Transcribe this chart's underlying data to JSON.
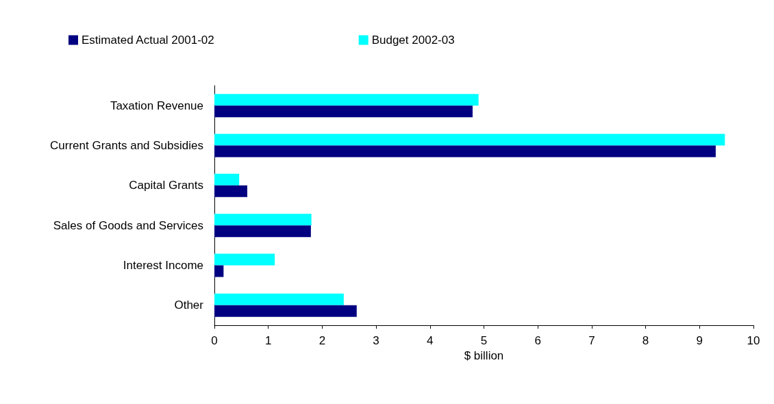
{
  "chart_data": {
    "type": "bar",
    "orientation": "horizontal",
    "xlabel": "$ billion",
    "categories": [
      "Taxation Revenue",
      "Current Grants and Subsidies",
      "Capital Grants",
      "Sales of Goods and Services",
      "Interest Income",
      "Other"
    ],
    "series": [
      {
        "name": "Estimated Actual 2001-02",
        "color": "#000080",
        "values": [
          4.79,
          9.3,
          0.61,
          1.79,
          0.17,
          2.64
        ]
      },
      {
        "name": "Budget 2002-03",
        "color": "#00ffff",
        "values": [
          4.9,
          9.47,
          0.46,
          1.8,
          1.12,
          2.4
        ]
      }
    ],
    "xlim": [
      0,
      10
    ],
    "xticks": [
      0,
      1,
      2,
      3,
      4,
      5,
      6,
      7,
      8,
      9,
      10
    ],
    "grid": false,
    "legend": "top left"
  }
}
